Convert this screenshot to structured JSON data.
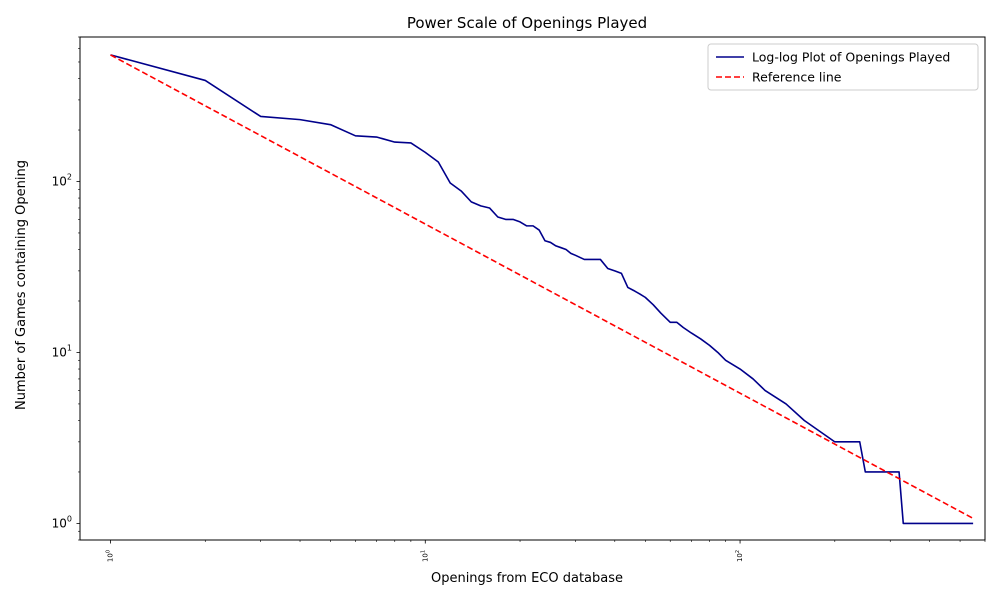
{
  "chart_data": {
    "type": "line",
    "title": "Power Scale of Openings Played",
    "xlabel": "Openings from ECO database",
    "ylabel": "Number of Games containing Opening",
    "xscale": "log",
    "yscale": "log",
    "xlim": [
      0.8,
      600
    ],
    "ylim": [
      0.8,
      700
    ],
    "grid": false,
    "legend_position": "top-right",
    "x_ticks": [
      {
        "value": 1,
        "base": "10",
        "exp": "0"
      },
      {
        "value": 10,
        "base": "10",
        "exp": "1"
      },
      {
        "value": 100,
        "base": "10",
        "exp": "2"
      }
    ],
    "y_ticks": [
      {
        "value": 1,
        "base": "10",
        "exp": "0"
      },
      {
        "value": 10,
        "base": "10",
        "exp": "1"
      },
      {
        "value": 100,
        "base": "10",
        "exp": "2"
      }
    ],
    "series": [
      {
        "name": "Log-log Plot of Openings Played",
        "color": "#00008b",
        "style": "solid",
        "x": [
          1,
          2,
          3,
          4,
          5,
          6,
          7,
          8,
          9,
          10,
          11,
          12,
          13,
          14,
          15,
          16,
          17,
          18,
          19,
          20,
          21,
          22,
          23,
          24,
          25,
          26,
          27,
          28,
          29,
          30,
          32,
          34,
          36,
          38,
          40,
          42,
          44,
          46,
          48,
          50,
          53,
          56,
          60,
          63,
          66,
          70,
          75,
          80,
          85,
          90,
          100,
          110,
          120,
          140,
          160,
          200,
          240,
          250,
          320,
          330,
          550
        ],
        "y": [
          550,
          390,
          240,
          230,
          215,
          185,
          182,
          170,
          168,
          148,
          130,
          98,
          88,
          76,
          72,
          70,
          62,
          60,
          60,
          58,
          55,
          55,
          52,
          45,
          44,
          42,
          41,
          40,
          38,
          37,
          35,
          35,
          35,
          31,
          30,
          29,
          24,
          23,
          22,
          21,
          19,
          17,
          15,
          15,
          14,
          13,
          12,
          11,
          10,
          9,
          8,
          7,
          6,
          5,
          4,
          3,
          3,
          2,
          2,
          1,
          1
        ],
        "step": true
      },
      {
        "name": "Reference line",
        "color": "#ff0000",
        "style": "dashed",
        "x": [
          1,
          550
        ],
        "y": [
          550,
          1.07
        ]
      }
    ]
  }
}
